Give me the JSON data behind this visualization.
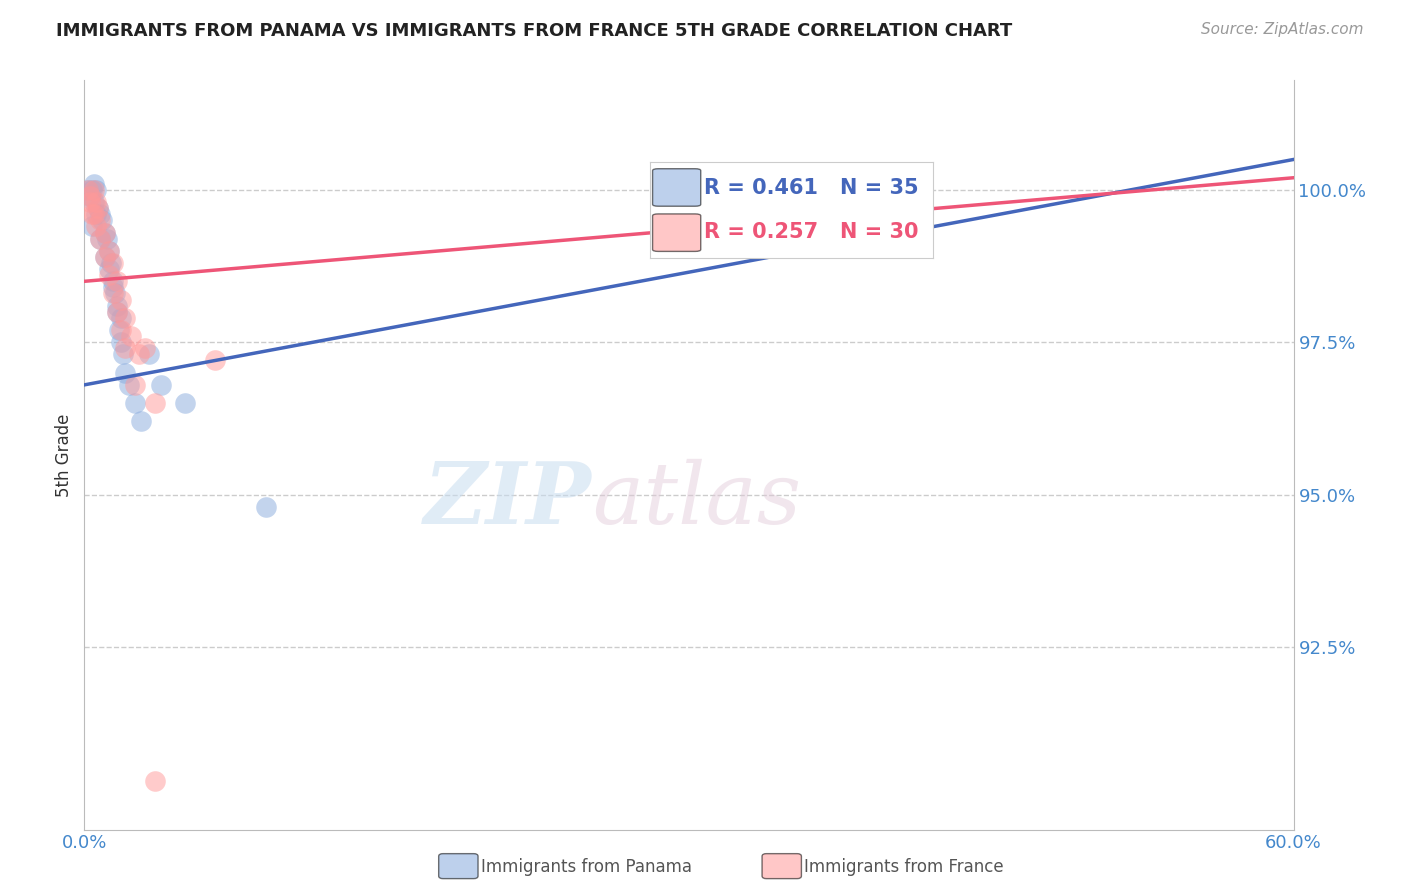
{
  "title": "IMMIGRANTS FROM PANAMA VS IMMIGRANTS FROM FRANCE 5TH GRADE CORRELATION CHART",
  "source_text": "Source: ZipAtlas.com",
  "xlabel_bottom": "Immigrants from Panama",
  "xlabel_bottom2": "Immigrants from France",
  "ylabel": "5th Grade",
  "xlim": [
    0.0,
    60.0
  ],
  "ylim": [
    89.5,
    101.8
  ],
  "yticks": [
    92.5,
    95.0,
    97.5,
    100.0
  ],
  "ytick_labels": [
    "92.5%",
    "95.0%",
    "97.5%",
    "100.0%"
  ],
  "xticks": [
    0.0,
    60.0
  ],
  "xtick_labels": [
    "0.0%",
    "60.0%"
  ],
  "watermark_zip": "ZIP",
  "watermark_atlas": "atlas",
  "legend_blue_r": "R = 0.461",
  "legend_blue_n": "N = 35",
  "legend_pink_r": "R = 0.257",
  "legend_pink_n": "N = 30",
  "blue_color": "#88AADD",
  "pink_color": "#FF9999",
  "blue_line_color": "#4466BB",
  "pink_line_color": "#EE5577",
  "axis_color": "#bbbbbb",
  "tick_label_color": "#4488CC",
  "grid_color": "#cccccc",
  "blue_scatter_x": [
    0.2,
    0.3,
    0.4,
    0.5,
    0.6,
    0.7,
    0.8,
    0.9,
    1.0,
    1.1,
    1.2,
    1.3,
    1.4,
    1.5,
    1.6,
    1.7,
    1.8,
    1.9,
    2.0,
    2.2,
    2.5,
    2.8,
    3.2,
    3.8,
    0.4,
    0.6,
    0.8,
    1.0,
    1.2,
    1.4,
    1.6,
    1.8,
    5.0,
    9.0,
    0.5
  ],
  "blue_scatter_y": [
    100.0,
    99.9,
    100.0,
    99.8,
    100.0,
    99.7,
    99.6,
    99.5,
    99.3,
    99.2,
    99.0,
    98.8,
    98.5,
    98.3,
    98.0,
    97.7,
    97.5,
    97.3,
    97.0,
    96.8,
    96.5,
    96.2,
    97.3,
    96.8,
    99.4,
    99.6,
    99.2,
    98.9,
    98.7,
    98.4,
    98.1,
    97.9,
    96.5,
    94.8,
    100.1
  ],
  "pink_scatter_x": [
    0.2,
    0.3,
    0.5,
    0.6,
    0.7,
    0.8,
    1.0,
    1.2,
    1.4,
    1.6,
    1.8,
    2.0,
    2.3,
    2.7,
    0.4,
    0.6,
    0.8,
    1.0,
    1.2,
    1.4,
    1.6,
    1.8,
    2.0,
    2.5,
    3.0,
    3.5,
    6.5,
    0.3,
    0.5,
    3.5
  ],
  "pink_scatter_y": [
    100.0,
    99.9,
    100.0,
    99.8,
    99.7,
    99.5,
    99.3,
    99.0,
    98.8,
    98.5,
    98.2,
    97.9,
    97.6,
    97.3,
    99.6,
    99.4,
    99.2,
    98.9,
    98.6,
    98.3,
    98.0,
    97.7,
    97.4,
    96.8,
    97.4,
    96.5,
    97.2,
    99.8,
    99.6,
    90.3
  ],
  "blue_trendline_x0": 0.0,
  "blue_trendline_y0": 96.8,
  "blue_trendline_x1": 60.0,
  "blue_trendline_y1": 100.5,
  "pink_trendline_x0": 0.0,
  "pink_trendline_y0": 98.5,
  "pink_trendline_x1": 60.0,
  "pink_trendline_y1": 100.2
}
